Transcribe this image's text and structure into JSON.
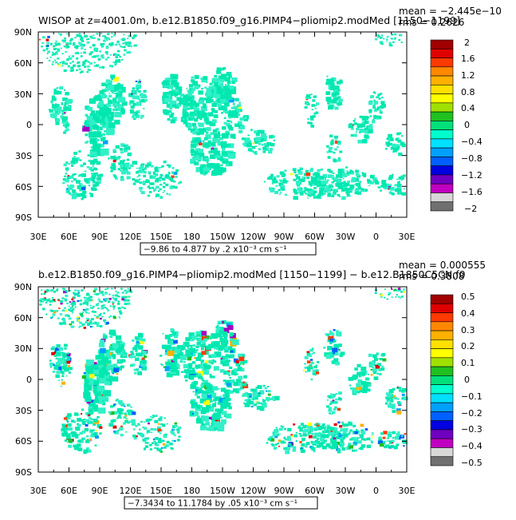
{
  "panels": [
    {
      "title": "WISOP at z=4001.0m, b.e12.B1850.f09_g16.PIMP4−pliomip2.modMed [1150−1199]",
      "mean": "mean = −2.445e−10",
      "rms": "rms = 0.2626",
      "range_note": "−9.86 to 4.877 by .2 x10⁻³ cm s⁻¹",
      "colorbar": {
        "labels": [
          "2",
          "1.6",
          "1.2",
          "0.8",
          "0.4",
          "0",
          "−0.4",
          "−0.8",
          "−1.2",
          "−1.6",
          "−2"
        ],
        "colors": [
          "#a00000",
          "#e00000",
          "#ff3a00",
          "#ff8800",
          "#ffb000",
          "#ffe000",
          "#ffff00",
          "#a0e000",
          "#20c020",
          "#00e07a",
          "#00ffcc",
          "#00e0ff",
          "#00a0ff",
          "#0060ff",
          "#0000e0",
          "#7000c0",
          "#c000c0",
          "#d8d8d8",
          "#707070"
        ]
      },
      "speckle_colors": [
        "#ffff00",
        "#ff3a00",
        "#e00000",
        "#0060ff",
        "#a000c0",
        "#00a0ff"
      ]
    },
    {
      "title": "b.e12.B1850.f09_g16.PIMP4−pliomip2.modMed [1150−1199] − b.e12.B1850C5CN.f0",
      "mean": "mean = 0.000555",
      "rms": "rms = 0.3808",
      "range_note": "−7.3434 to 11.1784 by .05 x10⁻³ cm s⁻¹",
      "colorbar": {
        "labels": [
          "0.5",
          "0.4",
          "0.3",
          "0.2",
          "0.1",
          "0",
          "−0.1",
          "−0.2",
          "−0.3",
          "−0.4",
          "−0.5"
        ],
        "colors": [
          "#a00000",
          "#e00000",
          "#ff3a00",
          "#ff8800",
          "#ffb000",
          "#ffe000",
          "#ffff00",
          "#a0e000",
          "#20c020",
          "#00e07a",
          "#00ffcc",
          "#00e0ff",
          "#00a0ff",
          "#0060ff",
          "#0000e0",
          "#7000c0",
          "#c000c0",
          "#d8d8d8",
          "#707070"
        ]
      },
      "speckle_colors": [
        "#ffff00",
        "#ff3a00",
        "#e00000",
        "#0060ff",
        "#a000c0",
        "#ffb000",
        "#20c020",
        "#00a0ff",
        "#ffffff"
      ]
    }
  ],
  "axes": {
    "lat_labels": [
      "90N",
      "60N",
      "30N",
      "0",
      "30S",
      "60S",
      "90S"
    ],
    "lon_labels": [
      "30E",
      "60E",
      "90E",
      "120E",
      "150E",
      "180",
      "150W",
      "120W",
      "90W",
      "60W",
      "30W",
      "0",
      "30E"
    ]
  },
  "colors": {
    "field_base": "#00e8b0",
    "field_alt": "#30f0c8"
  }
}
